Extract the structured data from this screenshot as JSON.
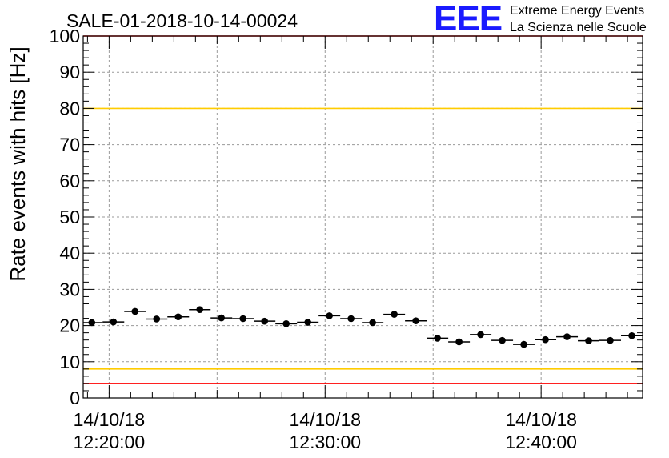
{
  "header": {
    "run_title": "SALE-01-2018-10-14-00024",
    "logo_text": "EEE",
    "logo_line1": "Extreme Energy Events",
    "logo_line2": "La Scienza nelle Scuole"
  },
  "colors": {
    "logo": "#1a1aff",
    "red_line": "#ff0000",
    "yellow_line": "#ffcc00",
    "grid": "#9a9a9a",
    "marker": "#000000"
  },
  "chart_data": {
    "type": "scatter",
    "title": "SALE-01-2018-10-14-00024",
    "ylabel": "Rate events with hits [Hz]",
    "xlabel": "",
    "ylim": [
      0,
      100
    ],
    "yticks": [
      0,
      10,
      20,
      30,
      40,
      50,
      60,
      70,
      80,
      90,
      100
    ],
    "xlim_minutes": [
      18.8,
      44.7
    ],
    "xticks": [
      {
        "minute": 20,
        "date": "14/10/18",
        "time": "12:20:00"
      },
      {
        "minute": 30,
        "date": "14/10/18",
        "time": "12:30:00"
      },
      {
        "minute": 40,
        "date": "14/10/18",
        "time": "12:40:00"
      }
    ],
    "grid": true,
    "x_bin_width_minutes": 1,
    "points": [
      {
        "x": 19.2,
        "y": 20.8
      },
      {
        "x": 20.2,
        "y": 21.0
      },
      {
        "x": 21.2,
        "y": 23.9
      },
      {
        "x": 22.2,
        "y": 21.8
      },
      {
        "x": 23.2,
        "y": 22.4
      },
      {
        "x": 24.2,
        "y": 24.4
      },
      {
        "x": 25.2,
        "y": 22.1
      },
      {
        "x": 26.2,
        "y": 21.9
      },
      {
        "x": 27.2,
        "y": 21.2
      },
      {
        "x": 28.2,
        "y": 20.5
      },
      {
        "x": 29.2,
        "y": 20.9
      },
      {
        "x": 30.2,
        "y": 22.7
      },
      {
        "x": 31.2,
        "y": 21.9
      },
      {
        "x": 32.2,
        "y": 20.8
      },
      {
        "x": 33.2,
        "y": 23.1
      },
      {
        "x": 34.2,
        "y": 21.3
      },
      {
        "x": 35.2,
        "y": 16.5
      },
      {
        "x": 36.2,
        "y": 15.5
      },
      {
        "x": 37.2,
        "y": 17.5
      },
      {
        "x": 38.2,
        "y": 15.9
      },
      {
        "x": 39.2,
        "y": 14.8
      },
      {
        "x": 40.2,
        "y": 16.1
      },
      {
        "x": 41.2,
        "y": 16.9
      },
      {
        "x": 42.2,
        "y": 15.8
      },
      {
        "x": 43.2,
        "y": 15.9
      },
      {
        "x": 44.2,
        "y": 17.2
      }
    ],
    "threshold_lines": [
      {
        "y": 100,
        "color": "#ff0000"
      },
      {
        "y": 80,
        "color": "#ffcc00"
      },
      {
        "y": 8,
        "color": "#ffcc00"
      },
      {
        "y": 4,
        "color": "#ff0000"
      }
    ]
  }
}
